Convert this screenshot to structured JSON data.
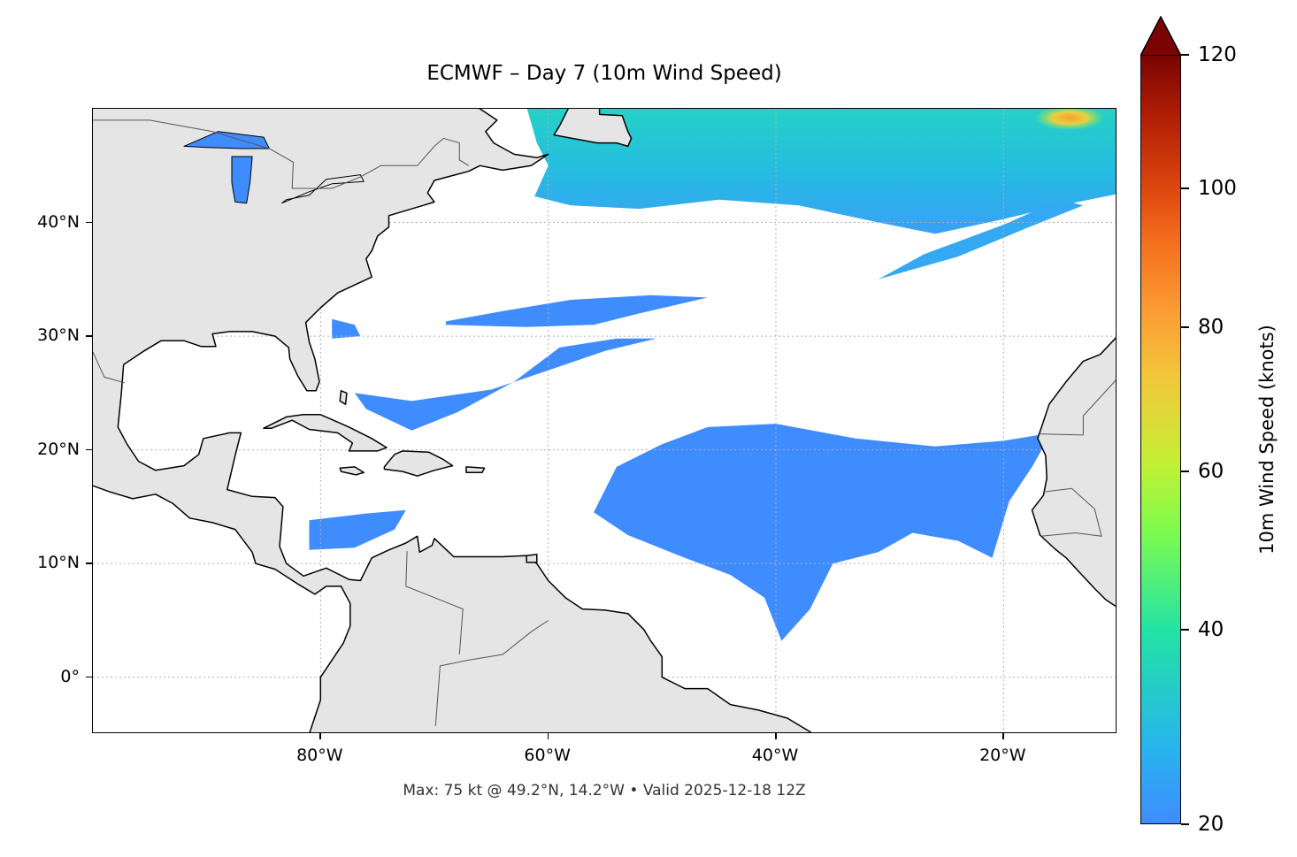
{
  "title": "ECMWF – Day 7 (10m Wind Speed)",
  "footer": "Max: 75 kt @ 49.2°N, 14.2°W • Valid 2025-12-18 12Z",
  "chart_data": {
    "type": "heatmap",
    "projection": "plate-carree map",
    "title": "ECMWF – Day 7 (10m Wind Speed)",
    "extent": {
      "lon": [
        -100,
        -10
      ],
      "lat": [
        -5,
        50
      ]
    },
    "x_ticks": [
      {
        "value": -80,
        "label": "80°W"
      },
      {
        "value": -60,
        "label": "60°W"
      },
      {
        "value": -40,
        "label": "40°W"
      },
      {
        "value": -20,
        "label": "20°W"
      }
    ],
    "y_ticks": [
      {
        "value": 40,
        "label": "40°N"
      },
      {
        "value": 30,
        "label": "30°N"
      },
      {
        "value": 20,
        "label": "20°N"
      },
      {
        "value": 10,
        "label": "10°N"
      },
      {
        "value": 0,
        "label": "0°"
      }
    ],
    "grid": true,
    "colorbar": {
      "label": "10m Wind Speed (knots)",
      "range": [
        20,
        120
      ],
      "extend": "max",
      "ticks": [
        {
          "value": 20,
          "label": "20"
        },
        {
          "value": 40,
          "label": "40"
        },
        {
          "value": 60,
          "label": "60"
        },
        {
          "value": 80,
          "label": "80"
        },
        {
          "value": 100,
          "label": "100"
        },
        {
          "value": 120,
          "label": "120"
        }
      ],
      "colormap": "turbo"
    },
    "max": {
      "value_kt": 75,
      "lat": 49.2,
      "lon": -14.2
    },
    "valid": "2025-12-18 12Z"
  },
  "colors": {
    "land": "#e5e5e5",
    "coast": "#000000",
    "low_wind": "#3f8cff",
    "mid_wind": "#22c8d6",
    "grid": "#b0b0b0"
  }
}
